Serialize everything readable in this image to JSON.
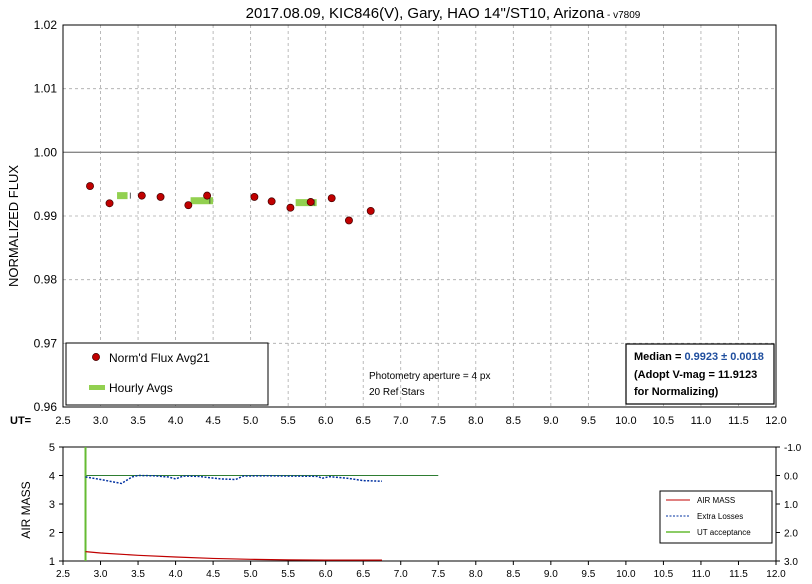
{
  "title": "2017.08.09, KIC846(V), Gary, HAO 14\"/ST10, Arizona",
  "title_suffix": " - v7809",
  "chart_data": [
    {
      "type": "scatter",
      "ylabel": "NORMALIZED FLUX",
      "xlabel_prefix": "UT=",
      "xlim": [
        2.5,
        12.0
      ],
      "ylim": [
        0.96,
        1.02
      ],
      "xticks": [
        "2.5",
        "3.0",
        "3.5",
        "4.0",
        "4.5",
        "5.0",
        "5.5",
        "6.0",
        "6.5",
        "7.0",
        "7.5",
        "8.0",
        "8.5",
        "9.0",
        "9.5",
        "10.0",
        "10.5",
        "11.0",
        "11.5",
        "12.0"
      ],
      "yticks": [
        "0.96",
        "0.97",
        "0.98",
        "0.99",
        "1.00",
        "1.01",
        "1.02"
      ],
      "reference_line": 1.0,
      "series": [
        {
          "name": "Norm'd Flux Avg21",
          "color": "#c00000",
          "points": [
            [
              2.86,
              0.9947
            ],
            [
              3.12,
              0.992
            ],
            [
              3.55,
              0.9932
            ],
            [
              3.8,
              0.993
            ],
            [
              4.17,
              0.9917
            ],
            [
              4.42,
              0.9932
            ],
            [
              5.05,
              0.993
            ],
            [
              5.28,
              0.9923
            ],
            [
              5.53,
              0.9913
            ],
            [
              5.8,
              0.9922
            ],
            [
              6.08,
              0.9928
            ],
            [
              6.31,
              0.9893
            ],
            [
              6.6,
              0.9908
            ]
          ]
        },
        {
          "name": "Hourly Avgs",
          "color": "#92d050",
          "segments": [
            [
              3.22,
              3.36,
              0.9932
            ],
            [
              4.2,
              4.5,
              0.9924
            ],
            [
              5.6,
              5.88,
              0.9921
            ]
          ]
        }
      ],
      "legend_position": "bottom-left",
      "annotations": [
        "Photometry aperture = 4 px",
        "20 Ref Stars"
      ],
      "median_box": {
        "label": "Median = ",
        "value": "0.9923 ± 0.0018",
        "line2": "(Adopt V-mag = 11.9123",
        "line3": " for Normalizing)"
      }
    },
    {
      "type": "line",
      "ylabel": "AIR MASS",
      "xlim": [
        2.5,
        12.0
      ],
      "ylim": [
        1,
        5
      ],
      "y2lim": [
        3.0,
        -1.0
      ],
      "xticks": [
        "2.5",
        "3.0",
        "3.5",
        "4.0",
        "4.5",
        "5.0",
        "5.5",
        "6.0",
        "6.5",
        "7.0",
        "7.5",
        "8.0",
        "8.5",
        "9.0",
        "9.5",
        "10.0",
        "10.5",
        "11.0",
        "11.5",
        "12.0"
      ],
      "yticks": [
        "1",
        "2",
        "3",
        "4",
        "5"
      ],
      "y2ticks": [
        "3.0",
        "2.0",
        "1.0",
        "0.0",
        "-1.0"
      ],
      "series": [
        {
          "name": "AIR MASS",
          "color": "#c00000",
          "style": "solid",
          "points": [
            [
              2.8,
              1.33
            ],
            [
              3.0,
              1.28
            ],
            [
              3.5,
              1.2
            ],
            [
              4.0,
              1.14
            ],
            [
              4.5,
              1.09
            ],
            [
              5.0,
              1.06
            ],
            [
              5.5,
              1.04
            ],
            [
              6.0,
              1.03
            ],
            [
              6.5,
              1.03
            ],
            [
              6.75,
              1.03
            ]
          ]
        },
        {
          "name": "Extra Losses",
          "color": "#0030a0",
          "style": "dashed",
          "points": [
            [
              2.8,
              0.05
            ],
            [
              3.0,
              0.14
            ],
            [
              3.28,
              0.28
            ],
            [
              3.42,
              0.05
            ],
            [
              3.5,
              0.0
            ],
            [
              3.7,
              0.01
            ],
            [
              3.9,
              0.05
            ],
            [
              4.0,
              0.12
            ],
            [
              4.1,
              0.02
            ],
            [
              4.3,
              0.03
            ],
            [
              4.6,
              0.12
            ],
            [
              4.8,
              0.14
            ],
            [
              4.9,
              0.02
            ],
            [
              5.2,
              0.01
            ],
            [
              5.5,
              0.02
            ],
            [
              5.9,
              0.03
            ],
            [
              5.95,
              0.1
            ],
            [
              6.05,
              0.04
            ],
            [
              6.3,
              0.1
            ],
            [
              6.5,
              0.18
            ],
            [
              6.75,
              0.2
            ]
          ]
        },
        {
          "name": "UT acceptance",
          "color": "#66bb33",
          "style": "solid",
          "vertical_x": 2.8,
          "level_line": {
            "x": [
              2.8,
              7.5
            ],
            "y2": 0.0,
            "color": "#2e7d32"
          }
        }
      ],
      "legend_position": "right"
    }
  ]
}
